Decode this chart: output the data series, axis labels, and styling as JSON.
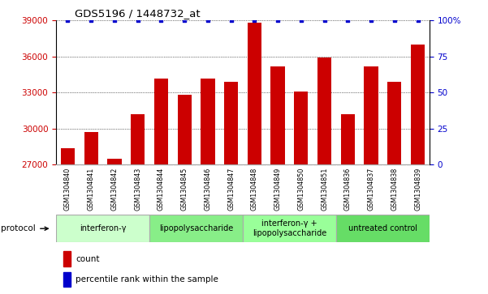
{
  "title": "GDS5196 / 1448732_at",
  "samples": [
    "GSM1304840",
    "GSM1304841",
    "GSM1304842",
    "GSM1304843",
    "GSM1304844",
    "GSM1304845",
    "GSM1304846",
    "GSM1304847",
    "GSM1304848",
    "GSM1304849",
    "GSM1304850",
    "GSM1304851",
    "GSM1304836",
    "GSM1304837",
    "GSM1304838",
    "GSM1304839"
  ],
  "counts": [
    28400,
    29700,
    27500,
    31200,
    34200,
    32800,
    34200,
    33900,
    38800,
    35200,
    33100,
    35900,
    31200,
    35200,
    33900,
    37000
  ],
  "percentile": [
    100,
    100,
    100,
    100,
    100,
    100,
    100,
    100,
    100,
    100,
    100,
    100,
    100,
    100,
    100,
    100
  ],
  "groups": [
    {
      "label": "interferon-γ",
      "start": 0,
      "end": 4,
      "color": "#ccffcc"
    },
    {
      "label": "lipopolysaccharide",
      "start": 4,
      "end": 8,
      "color": "#88ee88"
    },
    {
      "label": "interferon-γ +\nlipopolysaccharide",
      "start": 8,
      "end": 12,
      "color": "#99ff99"
    },
    {
      "label": "untreated control",
      "start": 12,
      "end": 16,
      "color": "#66dd66"
    }
  ],
  "bar_color": "#cc0000",
  "dot_color": "#0000cc",
  "ylim_left": [
    27000,
    39000
  ],
  "ylim_right": [
    0,
    100
  ],
  "yticks_left": [
    27000,
    30000,
    33000,
    36000,
    39000
  ],
  "yticks_right": [
    0,
    25,
    50,
    75,
    100
  ],
  "tick_color_left": "#cc0000",
  "tick_color_right": "#0000cc",
  "protocol_label": "protocol",
  "legend_count_label": "count",
  "legend_percentile_label": "percentile rank within the sample",
  "group_border_color": "#aaaaaa",
  "xtick_bg_color": "#cccccc"
}
